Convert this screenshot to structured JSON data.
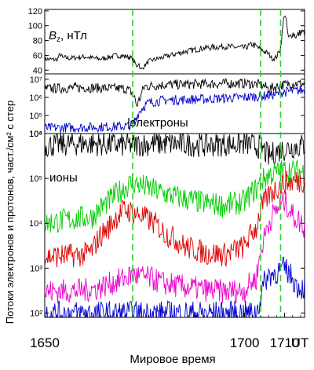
{
  "chart_data": [
    {
      "type": "line",
      "panel": "top",
      "label_italic": "B",
      "label_sub": "z",
      "label_rest": ", нТл",
      "y_ticks": [
        "40",
        "60",
        "80",
        "100",
        "120"
      ],
      "y_values": [
        40,
        60,
        80,
        100,
        120
      ],
      "ylim": [
        35,
        122
      ],
      "series": [
        {
          "color": "#000000",
          "x": [
            1650,
            1653,
            1654,
            1654.5,
            1655,
            1656,
            1660,
            1664,
            1668,
            1671,
            1672,
            1673,
            1673.5,
            1674,
            1676,
            1680,
            1685,
            1690,
            1695,
            1700,
            1702,
            1704,
            1706,
            1707,
            1708,
            1709,
            1709.5,
            1710,
            1711,
            1712,
            1713,
            1714,
            1715
          ],
          "values": [
            55,
            54,
            62,
            56,
            57,
            56,
            58,
            55,
            60,
            58,
            55,
            45,
            50,
            40,
            52,
            58,
            65,
            70,
            72,
            70,
            75,
            68,
            62,
            55,
            58,
            70,
            95,
            120,
            82,
            90,
            85,
            92,
            90
          ]
        }
      ]
    },
    {
      "type": "line",
      "panel": "middle",
      "y_scale": "log",
      "y_ticks": [
        "10⁴",
        "10⁵",
        "10⁶",
        "10⁷"
      ],
      "y_values": [
        10000,
        100000,
        1000000,
        10000000
      ],
      "ylim": [
        10000,
        20000000
      ],
      "annotation": "электроны",
      "series": [
        {
          "color": "#000000",
          "x": [
            1650,
            1660,
            1670,
            1671,
            1672,
            1673,
            1674,
            1675,
            1680,
            1690,
            1700,
            1704,
            1706,
            1708,
            1710,
            1712,
            1715
          ],
          "values": [
            3000000,
            3500000,
            3000000,
            2500000,
            1500000,
            300000,
            1000000,
            4000000,
            5000000,
            5500000,
            6000000,
            5000000,
            3000000,
            4000000,
            5000000,
            6000000,
            5500000
          ]
        },
        {
          "color": "#0000cc",
          "x": [
            1650,
            1660,
            1670,
            1672,
            1673,
            1674,
            1675,
            1676,
            1680,
            1690,
            1700,
            1705,
            1708,
            1710,
            1715
          ],
          "values": [
            20000,
            22000,
            25000,
            30000,
            80000,
            200000,
            350000,
            500000,
            700000,
            800000,
            1000000,
            1200000,
            1500000,
            2000000,
            2500000
          ]
        }
      ]
    },
    {
      "type": "line",
      "panel": "bottom",
      "y_scale": "log",
      "y_ticks": [
        "10²",
        "10³",
        "10⁴",
        "10⁵",
        "10⁶"
      ],
      "y_values": [
        100,
        1000,
        10000,
        100000,
        1000000
      ],
      "ylim": [
        80,
        1000000
      ],
      "annotation": "ионы",
      "series": [
        {
          "color": "#000000",
          "x": [
            1650,
            1660,
            1670,
            1680,
            1690,
            1700,
            1704,
            1706,
            1708,
            1712,
            1715
          ],
          "values": [
            550000,
            600000,
            550000,
            600000,
            550000,
            600000,
            500000,
            300000,
            400000,
            500000,
            550000
          ]
        },
        {
          "color": "#00cc00",
          "x": [
            1650,
            1662,
            1666,
            1668,
            1672,
            1676,
            1680,
            1685,
            1690,
            1695,
            1700,
            1703,
            1706,
            1710,
            1715
          ],
          "values": [
            10000,
            14000,
            30000,
            45000,
            80000,
            60000,
            45000,
            35000,
            28000,
            25000,
            30000,
            60000,
            120000,
            150000,
            140000
          ]
        },
        {
          "color": "#dd0000",
          "x": [
            1650,
            1660,
            1662,
            1666,
            1670,
            1676,
            1680,
            1685,
            1690,
            1695,
            1700,
            1703,
            1706,
            1710,
            1715
          ],
          "values": [
            1800,
            2000,
            2500,
            8000,
            20000,
            12000,
            6000,
            3000,
            2200,
            2000,
            3000,
            8000,
            40000,
            80000,
            90000
          ]
        },
        {
          "color": "#ee00cc",
          "x": [
            1650,
            1660,
            1663,
            1668,
            1672,
            1676,
            1680,
            1685,
            1690,
            1695,
            1700,
            1703,
            1704,
            1705,
            1706,
            1708,
            1710,
            1712,
            1715
          ],
          "values": [
            300,
            320,
            350,
            500,
            700,
            600,
            450,
            380,
            330,
            300,
            320,
            600,
            2000,
            5000,
            10000,
            20000,
            30000,
            15000,
            8000
          ]
        },
        {
          "color": "#0000cc",
          "x": [
            1650,
            1660,
            1670,
            1680,
            1690,
            1700,
            1703,
            1704,
            1705,
            1706,
            1708,
            1710,
            1712,
            1713,
            1715
          ],
          "values": [
            100,
            100,
            100,
            100,
            100,
            100,
            100,
            200,
            500,
            700,
            800,
            1000,
            600,
            400,
            350
          ]
        }
      ]
    }
  ],
  "x_axis": {
    "ticks": [
      "1650",
      "1700",
      "1710",
      "UT"
    ],
    "tick_values": [
      1650,
      1700,
      1710
    ],
    "range": [
      1650,
      1715
    ],
    "label": "Мировое время"
  },
  "y_axis_label": "Потоки электронов и протонов, част./см² с стер",
  "markers": {
    "color": "#33cc33",
    "x": [
      1672,
      1704,
      1709
    ]
  }
}
